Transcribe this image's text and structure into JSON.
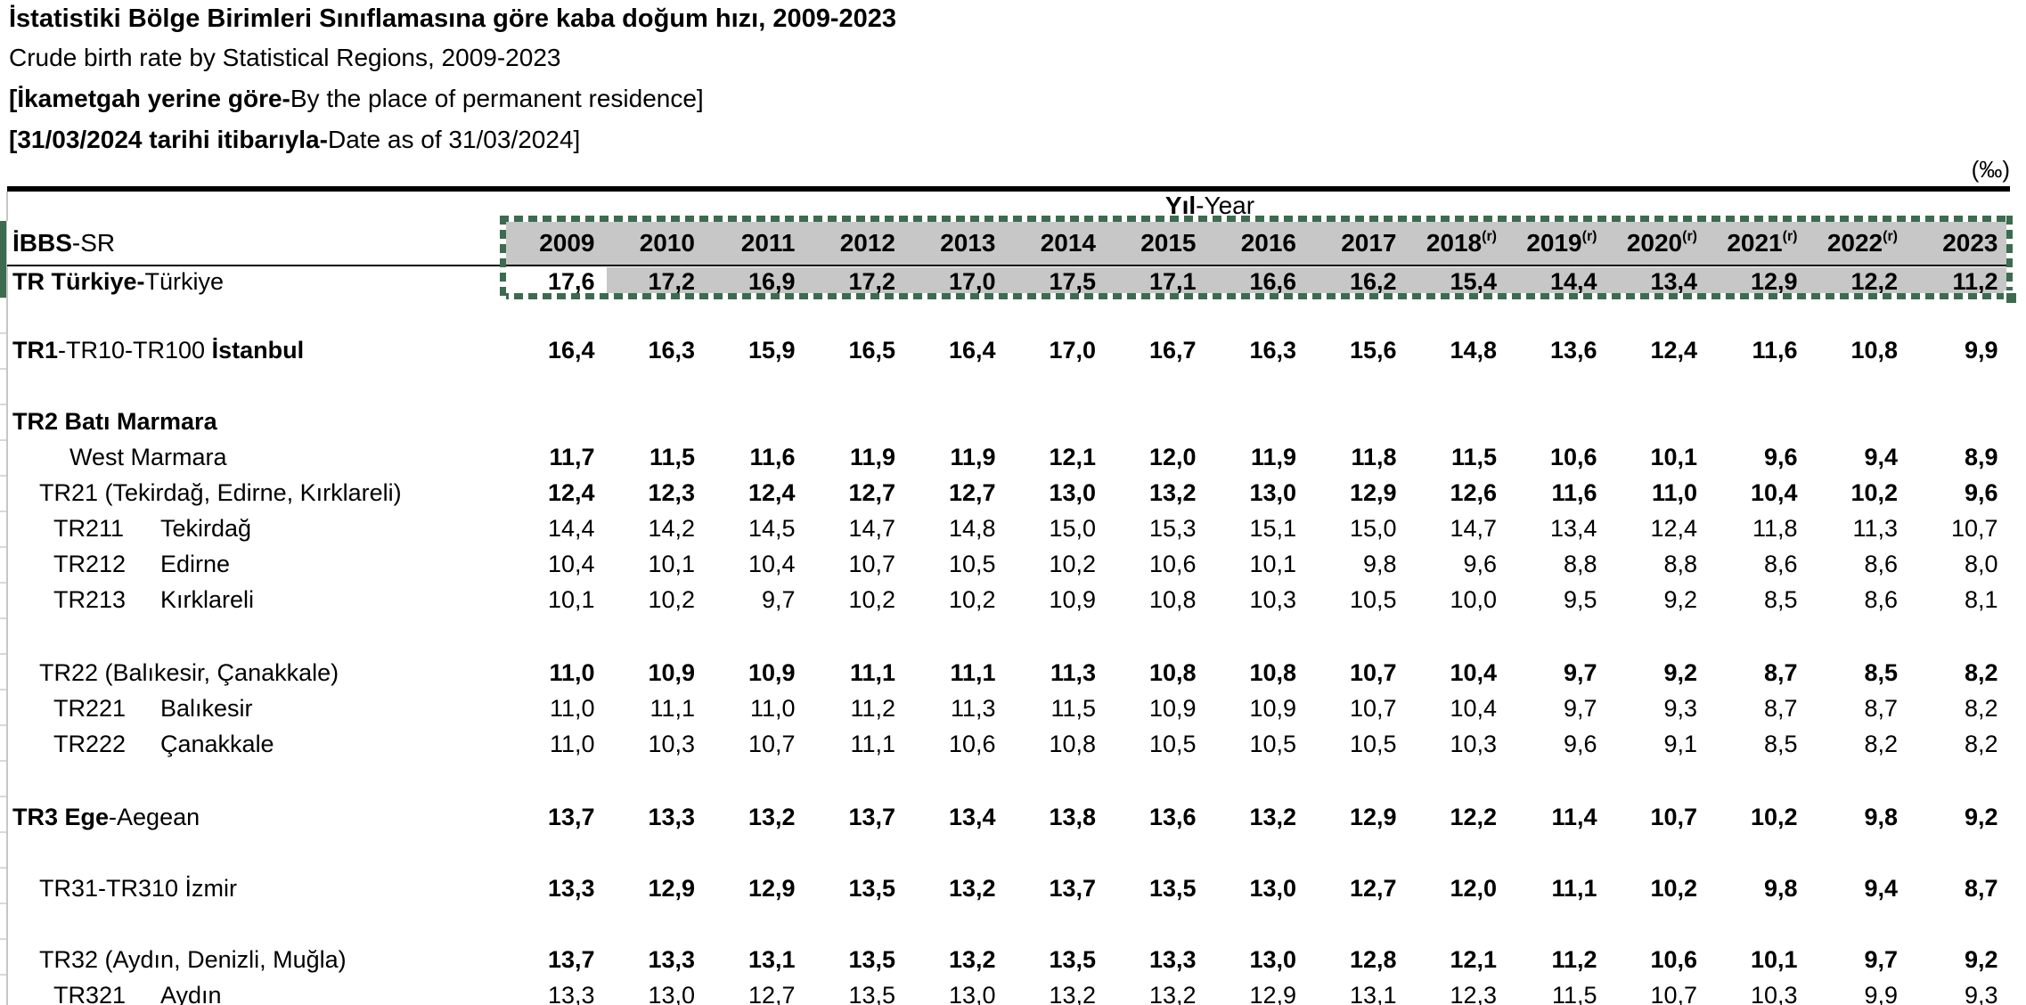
{
  "titles": {
    "line1": "İstatistiki Bölge Birimleri Sınıflamasına göre kaba doğum hızı, 2009-2023",
    "line2": "Crude birth rate by Statistical Regions, 2009-2023",
    "line3_bold": "[İkametgah yerine göre-",
    "line3_rest": "By the place of permanent residence]",
    "line4_bold": "[31/03/2024 tarihi itibarıyla-",
    "line4_rest": "Date as of 31/03/2024]"
  },
  "unit_label": "(‰)",
  "colors": {
    "selection_fill": "#c7c7c7",
    "marquee_green": "#3c6b50",
    "gridline": "#c6c6c6"
  },
  "table": {
    "group_header": {
      "bold": "Yıl",
      "rest": "-Year"
    },
    "corner_label": {
      "bold": "İBBS",
      "rest": "-SR"
    },
    "revision_mark": "(r)",
    "years": [
      [
        "2009",
        0
      ],
      [
        "2010",
        0
      ],
      [
        "2011",
        0
      ],
      [
        "2012",
        0
      ],
      [
        "2013",
        0
      ],
      [
        "2014",
        0
      ],
      [
        "2015",
        0
      ],
      [
        "2016",
        0
      ],
      [
        "2017",
        0
      ],
      [
        "2018",
        1
      ],
      [
        "2019",
        1
      ],
      [
        "2020",
        1
      ],
      [
        "2021",
        1
      ],
      [
        "2022",
        1
      ],
      [
        "2023",
        0
      ]
    ],
    "rows": [
      {
        "id": "TR",
        "label": [
          [
            "TR Türkiye-",
            1
          ],
          [
            "Türkiye",
            0
          ]
        ],
        "indent": "i0",
        "bold_values": true,
        "selected": true,
        "values": [
          "17,6",
          "17,2",
          "16,9",
          "17,2",
          "17,0",
          "17,5",
          "17,1",
          "16,6",
          "16,2",
          "15,4",
          "14,4",
          "13,4",
          "12,9",
          "12,2",
          "11,2"
        ]
      },
      {
        "id": "TR1",
        "label": [
          [
            "TR1",
            1
          ],
          [
            "-TR10-TR100 ",
            0
          ],
          [
            "İstanbul",
            1
          ]
        ],
        "indent": "i0",
        "bold_values": true,
        "values": [
          "16,4",
          "16,3",
          "15,9",
          "16,5",
          "16,4",
          "17,0",
          "16,7",
          "16,3",
          "15,6",
          "14,8",
          "13,6",
          "12,4",
          "11,6",
          "10,8",
          "9,9"
        ]
      },
      {
        "id": "TR2",
        "label": [
          [
            "TR2 Batı Marmara",
            1
          ]
        ],
        "indent": "i0",
        "bold_values": true,
        "values": [
          "",
          "",
          "",
          "",
          "",
          "",
          "",
          "",
          "",
          "",
          "",
          "",
          "",
          "",
          ""
        ]
      },
      {
        "id": "TR2-en",
        "label": [
          [
            "West Marmara",
            0
          ]
        ],
        "indent": "i2",
        "bold_values": true,
        "values": [
          "11,7",
          "11,5",
          "11,6",
          "11,9",
          "11,9",
          "12,1",
          "12,0",
          "11,9",
          "11,8",
          "11,5",
          "10,6",
          "10,1",
          "9,6",
          "9,4",
          "8,9"
        ]
      },
      {
        "id": "TR21",
        "label": [
          [
            "TR21 (Tekirdağ, Edirne, Kırklareli)",
            0
          ]
        ],
        "indent": "i1",
        "bold_values": true,
        "values": [
          "12,4",
          "12,3",
          "12,4",
          "12,7",
          "12,7",
          "13,0",
          "13,2",
          "13,0",
          "12,9",
          "12,6",
          "11,6",
          "11,0",
          "10,4",
          "10,2",
          "9,6"
        ]
      },
      {
        "id": "TR211",
        "label": [
          [
            "TR211",
            0
          ],
          [
            "Tekirdağ",
            0
          ]
        ],
        "indent": "sub",
        "bold_values": false,
        "values": [
          "14,4",
          "14,2",
          "14,5",
          "14,7",
          "14,8",
          "15,0",
          "15,3",
          "15,1",
          "15,0",
          "14,7",
          "13,4",
          "12,4",
          "11,8",
          "11,3",
          "10,7"
        ]
      },
      {
        "id": "TR212",
        "label": [
          [
            "TR212",
            0
          ],
          [
            "Edirne",
            0
          ]
        ],
        "indent": "sub",
        "bold_values": false,
        "values": [
          "10,4",
          "10,1",
          "10,4",
          "10,7",
          "10,5",
          "10,2",
          "10,6",
          "10,1",
          "9,8",
          "9,6",
          "8,8",
          "8,8",
          "8,6",
          "8,6",
          "8,0"
        ]
      },
      {
        "id": "TR213",
        "label": [
          [
            "TR213",
            0
          ],
          [
            "Kırklareli",
            0
          ]
        ],
        "indent": "sub",
        "bold_values": false,
        "values": [
          "10,1",
          "10,2",
          "9,7",
          "10,2",
          "10,2",
          "10,9",
          "10,8",
          "10,3",
          "10,5",
          "10,0",
          "9,5",
          "9,2",
          "8,5",
          "8,6",
          "8,1"
        ]
      },
      {
        "id": "TR22",
        "label": [
          [
            "TR22 (Balıkesir, Çanakkale)",
            0
          ]
        ],
        "indent": "i1",
        "bold_values": true,
        "values": [
          "11,0",
          "10,9",
          "10,9",
          "11,1",
          "11,1",
          "11,3",
          "10,8",
          "10,8",
          "10,7",
          "10,4",
          "9,7",
          "9,2",
          "8,7",
          "8,5",
          "8,2"
        ]
      },
      {
        "id": "TR221",
        "label": [
          [
            "TR221",
            0
          ],
          [
            "Balıkesir",
            0
          ]
        ],
        "indent": "sub",
        "bold_values": false,
        "values": [
          "11,0",
          "11,1",
          "11,0",
          "11,2",
          "11,3",
          "11,5",
          "10,9",
          "10,9",
          "10,7",
          "10,4",
          "9,7",
          "9,3",
          "8,7",
          "8,7",
          "8,2"
        ]
      },
      {
        "id": "TR222",
        "label": [
          [
            "TR222",
            0
          ],
          [
            "Çanakkale",
            0
          ]
        ],
        "indent": "sub",
        "bold_values": false,
        "values": [
          "11,0",
          "10,3",
          "10,7",
          "11,1",
          "10,6",
          "10,8",
          "10,5",
          "10,5",
          "10,5",
          "10,3",
          "9,6",
          "9,1",
          "8,5",
          "8,2",
          "8,2"
        ]
      },
      {
        "id": "TR3",
        "label": [
          [
            "TR3 Ege",
            1
          ],
          [
            "-Aegean",
            0
          ]
        ],
        "indent": "i0",
        "bold_values": true,
        "values": [
          "13,7",
          "13,3",
          "13,2",
          "13,7",
          "13,4",
          "13,8",
          "13,6",
          "13,2",
          "12,9",
          "12,2",
          "11,4",
          "10,7",
          "10,2",
          "9,8",
          "9,2"
        ]
      },
      {
        "id": "TR31",
        "label": [
          [
            "TR31-TR310 İzmir",
            0
          ]
        ],
        "indent": "i1",
        "bold_values": true,
        "values": [
          "13,3",
          "12,9",
          "12,9",
          "13,5",
          "13,2",
          "13,7",
          "13,5",
          "13,0",
          "12,7",
          "12,0",
          "11,1",
          "10,2",
          "9,8",
          "9,4",
          "8,7"
        ]
      },
      {
        "id": "TR32",
        "label": [
          [
            "TR32 (Aydın, Denizli, Muğla)",
            0
          ]
        ],
        "indent": "i1",
        "bold_values": true,
        "values": [
          "13,7",
          "13,3",
          "13,1",
          "13,5",
          "13,2",
          "13,5",
          "13,3",
          "13,0",
          "12,8",
          "12,1",
          "11,2",
          "10,6",
          "10,1",
          "9,7",
          "9,2"
        ]
      },
      {
        "id": "TR321",
        "label": [
          [
            "TR321",
            0
          ],
          [
            "Aydın",
            0
          ]
        ],
        "indent": "sub",
        "bold_values": false,
        "values": [
          "13,3",
          "13,0",
          "12,7",
          "13,5",
          "13,0",
          "13,2",
          "13,2",
          "12,9",
          "13,1",
          "12,3",
          "11,5",
          "10,7",
          "10,3",
          "9,9",
          "9,3"
        ]
      }
    ]
  }
}
